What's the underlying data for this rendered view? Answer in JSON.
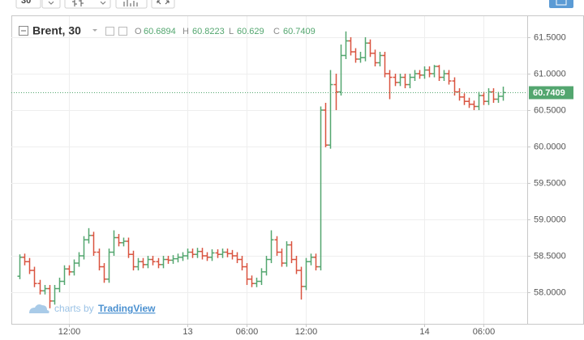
{
  "toolbar": {
    "interval": "30"
  },
  "chart_data": {
    "type": "ohlc",
    "title": "Brent, 30",
    "ohlc_labels": [
      "O",
      "H",
      "L",
      "C"
    ],
    "watermark": {
      "prefix": "charts by",
      "brand": "TradingView"
    },
    "up_color": "#53a66f",
    "down_color": "#d9533f",
    "grid": true,
    "last_price_line": true,
    "ylim": [
      57.567,
      61.789
    ],
    "yticks": [
      {
        "value": 58.0,
        "label": "58.0000"
      },
      {
        "value": 58.5,
        "label": "58.5000"
      },
      {
        "value": 59.0,
        "label": "59.0000"
      },
      {
        "value": 59.5,
        "label": "59.5000"
      },
      {
        "value": 60.0,
        "label": "60.0000"
      },
      {
        "value": 60.5,
        "label": "60.5000"
      },
      {
        "value": 61.0,
        "label": "61.0000"
      },
      {
        "value": 61.5,
        "label": "61.5000"
      }
    ],
    "categories": [
      null,
      null,
      null,
      null,
      null,
      null,
      null,
      null,
      null,
      null,
      "12:00",
      null,
      null,
      null,
      null,
      null,
      null,
      null,
      null,
      null,
      null,
      null,
      null,
      null,
      null,
      null,
      null,
      null,
      null,
      null,
      null,
      null,
      null,
      null,
      "13",
      null,
      null,
      null,
      null,
      null,
      null,
      null,
      null,
      null,
      null,
      null,
      "06:00",
      null,
      null,
      null,
      null,
      null,
      null,
      null,
      null,
      null,
      null,
      null,
      "12:00",
      null,
      null,
      null,
      null,
      null,
      null,
      null,
      null,
      null,
      null,
      null,
      null,
      null,
      null,
      null,
      null,
      null,
      null,
      null,
      null,
      null,
      null,
      null,
      "14",
      null,
      null,
      null,
      null,
      null,
      null,
      null,
      null,
      null,
      null,
      null,
      "06:00",
      null,
      null,
      null,
      null
    ],
    "open": [
      58.22,
      58.48,
      58.42,
      58.3,
      58.12,
      58.02,
      58.05,
      57.88,
      58.05,
      58.15,
      58.32,
      58.28,
      58.4,
      58.5,
      58.72,
      58.78,
      58.55,
      58.35,
      58.18,
      58.55,
      58.75,
      58.68,
      58.7,
      58.52,
      58.35,
      58.42,
      58.38,
      58.45,
      58.42,
      58.38,
      58.45,
      58.44,
      58.46,
      58.48,
      58.5,
      58.55,
      58.52,
      58.56,
      58.5,
      58.48,
      58.54,
      58.52,
      58.55,
      58.53,
      58.5,
      58.45,
      58.35,
      58.18,
      58.12,
      58.15,
      58.28,
      58.45,
      58.72,
      58.55,
      58.4,
      58.65,
      58.45,
      58.3,
      58.08,
      58.42,
      58.48,
      58.35,
      60.5,
      60.02,
      60.85,
      60.75,
      61.25,
      61.45,
      61.3,
      61.2,
      61.22,
      61.42,
      61.28,
      61.15,
      61.25,
      61.0,
      60.95,
      60.88,
      60.95,
      60.85,
      60.95,
      61.0,
      60.98,
      61.05,
      61.0,
      61.1,
      60.95,
      61.0,
      60.9,
      60.75,
      60.68,
      60.62,
      60.58,
      60.55,
      60.7,
      60.62,
      60.75,
      60.65,
      60.6894
    ],
    "high": [
      58.52,
      58.53,
      58.47,
      58.35,
      58.17,
      58.1,
      58.1,
      58.1,
      58.2,
      58.37,
      58.37,
      58.45,
      58.55,
      58.77,
      58.88,
      58.83,
      58.6,
      58.4,
      58.6,
      58.85,
      58.8,
      58.75,
      58.75,
      58.57,
      58.47,
      58.47,
      58.5,
      58.5,
      58.47,
      58.5,
      58.5,
      58.51,
      58.53,
      58.55,
      58.6,
      58.6,
      58.61,
      58.61,
      58.55,
      58.59,
      58.59,
      58.6,
      58.6,
      58.58,
      58.55,
      58.5,
      58.4,
      58.23,
      58.2,
      58.33,
      58.5,
      58.85,
      58.77,
      58.6,
      58.7,
      58.7,
      58.5,
      58.35,
      58.47,
      58.53,
      58.53,
      60.55,
      60.6,
      61.05,
      61.0,
      61.4,
      61.58,
      61.5,
      61.35,
      61.3,
      61.5,
      61.47,
      61.33,
      61.3,
      61.3,
      61.05,
      61.0,
      61.0,
      61.0,
      61.0,
      61.05,
      61.05,
      61.1,
      61.1,
      61.12,
      61.12,
      61.05,
      61.05,
      60.95,
      60.8,
      60.73,
      60.67,
      60.63,
      60.75,
      60.75,
      60.8,
      60.8,
      60.75,
      60.8223
    ],
    "low": [
      58.18,
      58.37,
      58.25,
      58.07,
      57.97,
      57.97,
      57.78,
      57.83,
      58.0,
      58.1,
      58.23,
      58.23,
      58.35,
      58.45,
      58.67,
      58.5,
      58.3,
      58.13,
      58.13,
      58.5,
      58.63,
      58.63,
      58.47,
      58.3,
      58.3,
      58.33,
      58.33,
      58.37,
      58.33,
      58.33,
      58.39,
      58.39,
      58.41,
      58.43,
      58.45,
      58.47,
      58.47,
      58.45,
      58.43,
      58.43,
      58.47,
      58.47,
      58.48,
      58.45,
      58.4,
      58.3,
      58.1,
      58.07,
      58.07,
      58.1,
      58.23,
      58.4,
      58.5,
      58.35,
      58.35,
      58.4,
      58.25,
      57.9,
      58.03,
      58.37,
      58.3,
      58.3,
      59.99,
      59.97,
      60.5,
      60.7,
      61.2,
      61.25,
      61.15,
      61.15,
      61.17,
      61.23,
      61.1,
      61.1,
      60.95,
      60.65,
      60.83,
      60.83,
      60.8,
      60.8,
      60.9,
      60.93,
      60.93,
      60.95,
      60.95,
      60.9,
      60.9,
      60.85,
      60.7,
      60.63,
      60.57,
      60.53,
      60.5,
      60.5,
      60.57,
      60.57,
      60.6,
      60.6,
      60.629
    ],
    "close": [
      58.48,
      58.42,
      58.3,
      58.12,
      58.02,
      58.05,
      57.88,
      58.05,
      58.15,
      58.32,
      58.28,
      58.4,
      58.5,
      58.72,
      58.78,
      58.55,
      58.35,
      58.18,
      58.55,
      58.75,
      58.68,
      58.7,
      58.52,
      58.35,
      58.42,
      58.38,
      58.45,
      58.42,
      58.38,
      58.45,
      58.44,
      58.46,
      58.48,
      58.5,
      58.55,
      58.52,
      58.56,
      58.5,
      58.48,
      58.54,
      58.52,
      58.55,
      58.53,
      58.5,
      58.45,
      58.35,
      58.18,
      58.12,
      58.15,
      58.28,
      58.45,
      58.72,
      58.55,
      58.4,
      58.65,
      58.45,
      58.3,
      58.08,
      58.42,
      58.48,
      58.35,
      60.5,
      60.02,
      60.85,
      60.75,
      61.25,
      61.45,
      61.3,
      61.2,
      61.22,
      61.42,
      61.28,
      61.15,
      61.25,
      61.0,
      60.95,
      60.88,
      60.95,
      60.85,
      60.95,
      61.0,
      60.98,
      61.05,
      61.0,
      61.1,
      60.95,
      61.0,
      60.9,
      60.75,
      60.68,
      60.62,
      60.58,
      60.55,
      60.7,
      60.62,
      60.75,
      60.65,
      60.6894,
      60.7409
    ]
  }
}
